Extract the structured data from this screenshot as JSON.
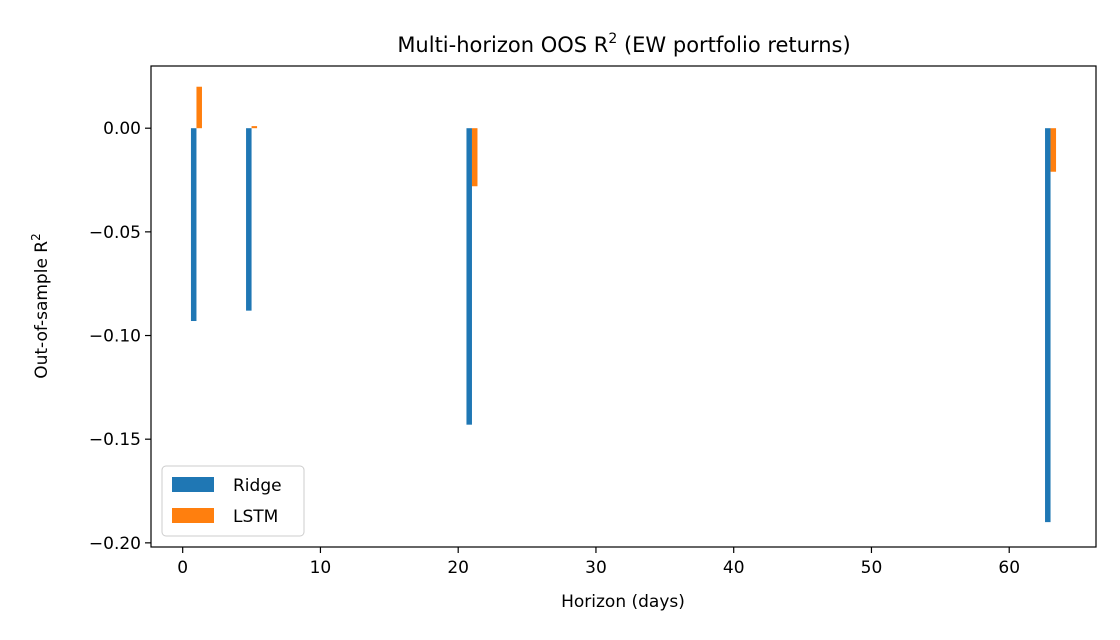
{
  "chart_data": {
    "type": "bar",
    "title": "Multi-horizon OOS R",
    "title_superscript": "2",
    "title_suffix": " (EW portfolio returns)",
    "xlabel": "Horizon (days)",
    "ylabel": "Out-of-sample R",
    "ylabel_superscript": "2",
    "x": [
      1,
      5,
      21,
      63
    ],
    "series": [
      {
        "name": "Ridge",
        "color": "#1f77b4",
        "values": [
          -0.093,
          -0.088,
          -0.143,
          -0.19
        ]
      },
      {
        "name": "LSTM",
        "color": "#ff7f0e",
        "values": [
          0.02,
          0.001,
          -0.028,
          -0.021
        ]
      }
    ],
    "xlim": [
      -2.3,
      66.3
    ],
    "ylim": [
      -0.202,
      0.03
    ],
    "xticks": [
      0,
      10,
      20,
      30,
      40,
      50,
      60
    ],
    "yticks": [
      0.0,
      -0.05,
      -0.1,
      -0.15,
      -0.2
    ],
    "ytick_labels": [
      "0.00",
      "−0.05",
      "−0.10",
      "−0.15",
      "−0.20"
    ],
    "legend_position": "lower-left",
    "grid": false
  }
}
